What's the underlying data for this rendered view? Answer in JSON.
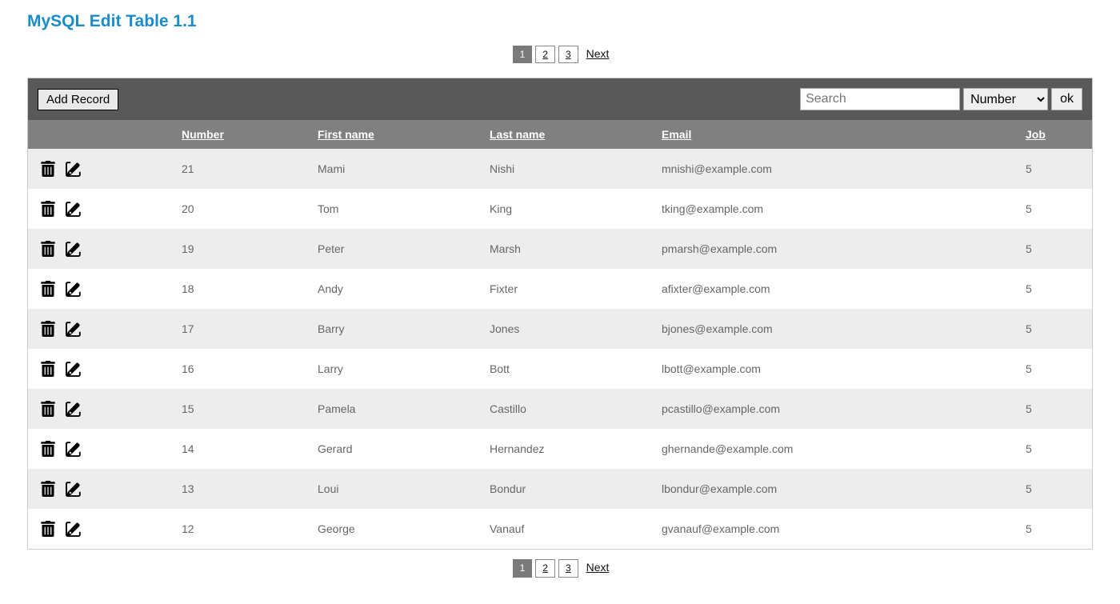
{
  "title": "MySQL Edit Table 1.1",
  "toolbar": {
    "add_label": "Add Record",
    "search_placeholder": "Search",
    "ok_label": "ok",
    "select_options": [
      "Number",
      "First name",
      "Last name",
      "Email",
      "Job"
    ],
    "selected_option": "Number"
  },
  "pagination": {
    "pages": [
      {
        "label": "1",
        "active": true
      },
      {
        "label": "2",
        "active": false
      },
      {
        "label": "3",
        "active": false
      }
    ],
    "next_label": "Next"
  },
  "columns": [
    {
      "key": "number",
      "label": "Number"
    },
    {
      "key": "first_name",
      "label": "First name"
    },
    {
      "key": "last_name",
      "label": "Last name"
    },
    {
      "key": "email",
      "label": "Email"
    },
    {
      "key": "job",
      "label": "Job"
    }
  ],
  "rows": [
    {
      "number": "21",
      "first_name": "Mami",
      "last_name": "Nishi",
      "email": "mnishi@example.com",
      "job": "5"
    },
    {
      "number": "20",
      "first_name": "Tom",
      "last_name": "King",
      "email": "tking@example.com",
      "job": "5"
    },
    {
      "number": "19",
      "first_name": "Peter",
      "last_name": "Marsh",
      "email": "pmarsh@example.com",
      "job": "5"
    },
    {
      "number": "18",
      "first_name": "Andy",
      "last_name": "Fixter",
      "email": "afixter@example.com",
      "job": "5"
    },
    {
      "number": "17",
      "first_name": "Barry",
      "last_name": "Jones",
      "email": "bjones@example.com",
      "job": "5"
    },
    {
      "number": "16",
      "first_name": "Larry",
      "last_name": "Bott",
      "email": "lbott@example.com",
      "job": "5"
    },
    {
      "number": "15",
      "first_name": "Pamela",
      "last_name": "Castillo",
      "email": "pcastillo@example.com",
      "job": "5"
    },
    {
      "number": "14",
      "first_name": "Gerard",
      "last_name": "Hernandez",
      "email": "ghernande@example.com",
      "job": "5"
    },
    {
      "number": "13",
      "first_name": "Loui",
      "last_name": "Bondur",
      "email": "lbondur@example.com",
      "job": "5"
    },
    {
      "number": "12",
      "first_name": "George",
      "last_name": "Vanauf",
      "email": "gvanauf@example.com",
      "job": "5"
    }
  ],
  "colors": {
    "title": "#1a8cc9",
    "toolbar_bg": "#595959",
    "header_bg": "#808080",
    "row_odd": "#ededed",
    "row_even": "#ffffff",
    "text_body": "#666666"
  }
}
